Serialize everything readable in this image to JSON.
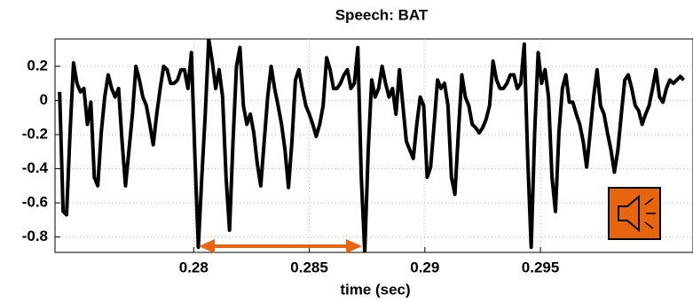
{
  "chart_data": {
    "type": "line",
    "title": "Speech:  BAT",
    "xlabel": "time (sec)",
    "color": "#000000",
    "grid": true,
    "xlim": [
      0.274,
      0.3016
    ],
    "xticks": [
      0.28,
      0.285,
      0.29,
      0.295
    ],
    "ylim": [
      -0.89,
      0.36
    ],
    "yticks": [
      -0.8,
      -0.6,
      -0.4,
      -0.2,
      0,
      0.2
    ],
    "x": [
      0.2742,
      0.27435,
      0.2745,
      0.27465,
      0.2748,
      0.27495,
      0.2751,
      0.27525,
      0.2754,
      0.27555,
      0.2757,
      0.27585,
      0.276,
      0.27615,
      0.2763,
      0.27645,
      0.2766,
      0.27675,
      0.2769,
      0.27705,
      0.2772,
      0.27735,
      0.2775,
      0.27765,
      0.2778,
      0.27795,
      0.2781,
      0.27825,
      0.2784,
      0.27855,
      0.2787,
      0.27885,
      0.279,
      0.27915,
      0.2793,
      0.27945,
      0.2796,
      0.27975,
      0.2799,
      0.28005,
      0.2802,
      0.28035,
      0.2805,
      0.28065,
      0.2808,
      0.28095,
      0.2811,
      0.28125,
      0.2814,
      0.28155,
      0.2817,
      0.28185,
      0.282,
      0.28215,
      0.2823,
      0.28245,
      0.2826,
      0.28275,
      0.2829,
      0.28305,
      0.2832,
      0.28335,
      0.2835,
      0.28365,
      0.2838,
      0.28395,
      0.2841,
      0.28425,
      0.2844,
      0.28455,
      0.2847,
      0.28485,
      0.285,
      0.28515,
      0.2853,
      0.28545,
      0.2856,
      0.28575,
      0.2859,
      0.28605,
      0.2862,
      0.28635,
      0.2865,
      0.28665,
      0.2868,
      0.28695,
      0.2871,
      0.28725,
      0.2874,
      0.28755,
      0.2877,
      0.28785,
      0.288,
      0.28815,
      0.2883,
      0.28845,
      0.2886,
      0.28875,
      0.2889,
      0.28905,
      0.2892,
      0.28935,
      0.2895,
      0.28965,
      0.2898,
      0.28995,
      0.2901,
      0.29025,
      0.2904,
      0.29055,
      0.2907,
      0.29085,
      0.291,
      0.29115,
      0.2913,
      0.29145,
      0.2916,
      0.29175,
      0.2919,
      0.29205,
      0.2922,
      0.29235,
      0.2925,
      0.29265,
      0.2928,
      0.29295,
      0.2931,
      0.29325,
      0.2934,
      0.29355,
      0.2937,
      0.29385,
      0.294,
      0.29415,
      0.2943,
      0.29445,
      0.2946,
      0.29475,
      0.2949,
      0.29505,
      0.2952,
      0.29535,
      0.2955,
      0.29565,
      0.2958,
      0.29595,
      0.2961,
      0.29625,
      0.2964,
      0.29655,
      0.2967,
      0.29685,
      0.297,
      0.29715,
      0.2973,
      0.29745,
      0.2976,
      0.29775,
      0.2979,
      0.29805,
      0.2982,
      0.29835,
      0.2985,
      0.29865,
      0.2988,
      0.29895,
      0.2991,
      0.29925,
      0.2994,
      0.29955,
      0.2997,
      0.29985,
      0.3,
      0.30015,
      0.3003,
      0.30045,
      0.3006,
      0.30075,
      0.3009,
      0.30105,
      0.3012
    ],
    "values": [
      0.05,
      -0.65,
      -0.67,
      -0.19,
      0.22,
      0.1,
      0.05,
      0.07,
      -0.14,
      -0.01,
      -0.45,
      -0.5,
      -0.19,
      0.02,
      0.15,
      0.07,
      0.02,
      0.07,
      -0.24,
      -0.5,
      -0.29,
      -0.08,
      0.2,
      0.12,
      0.02,
      -0.03,
      -0.14,
      -0.26,
      -0.08,
      0.07,
      0.2,
      0.18,
      0.1,
      0.1,
      0.12,
      0.18,
      0.18,
      0.07,
      0.28,
      -0.32,
      -0.86,
      -0.45,
      -0.08,
      0.36,
      0.23,
      0.07,
      0.18,
      0.02,
      -0.45,
      -0.76,
      -0.24,
      0.2,
      0.31,
      -0.03,
      -0.14,
      -0.08,
      -0.19,
      -0.37,
      -0.5,
      -0.24,
      0.02,
      0.2,
      0.07,
      -0.03,
      -0.14,
      -0.29,
      -0.51,
      -0.24,
      0.12,
      0.18,
      0.07,
      -0.03,
      -0.08,
      -0.14,
      -0.21,
      -0.14,
      -0.03,
      0.25,
      0.18,
      0.07,
      0.07,
      0.1,
      0.15,
      0.18,
      0.07,
      0.1,
      0.31,
      -0.45,
      -0.89,
      -0.29,
      0.12,
      0.02,
      0.07,
      0.2,
      0.1,
      0.02,
      0.07,
      -0.08,
      0.18,
      -0.03,
      -0.24,
      -0.29,
      -0.34,
      -0.14,
      0.02,
      -0.03,
      -0.45,
      -0.39,
      -0.14,
      0.12,
      0.07,
      0.1,
      -0.03,
      -0.45,
      -0.55,
      -0.19,
      0.15,
      0.02,
      -0.03,
      -0.14,
      -0.16,
      -0.19,
      -0.16,
      -0.11,
      -0.03,
      0.23,
      0.12,
      0.07,
      0.07,
      0.1,
      0.15,
      0.15,
      0.07,
      0.1,
      0.33,
      -0.34,
      -0.86,
      -0.19,
      0.28,
      0.1,
      0.18,
      0.02,
      -0.45,
      -0.65,
      -0.19,
      0.07,
      0.15,
      -0.01,
      -0.01,
      -0.08,
      -0.14,
      -0.24,
      -0.39,
      -0.19,
      0.02,
      0.18,
      -0.03,
      -0.08,
      -0.19,
      -0.29,
      -0.42,
      -0.29,
      -0.08,
      0.12,
      0.15,
      0.07,
      -0.03,
      -0.06,
      -0.14,
      -0.08,
      -0.03,
      0.07,
      0.18,
      0.02,
      -0.01,
      0.07,
      0.12,
      0.1,
      0.12,
      0.14,
      0.12
    ]
  }
}
